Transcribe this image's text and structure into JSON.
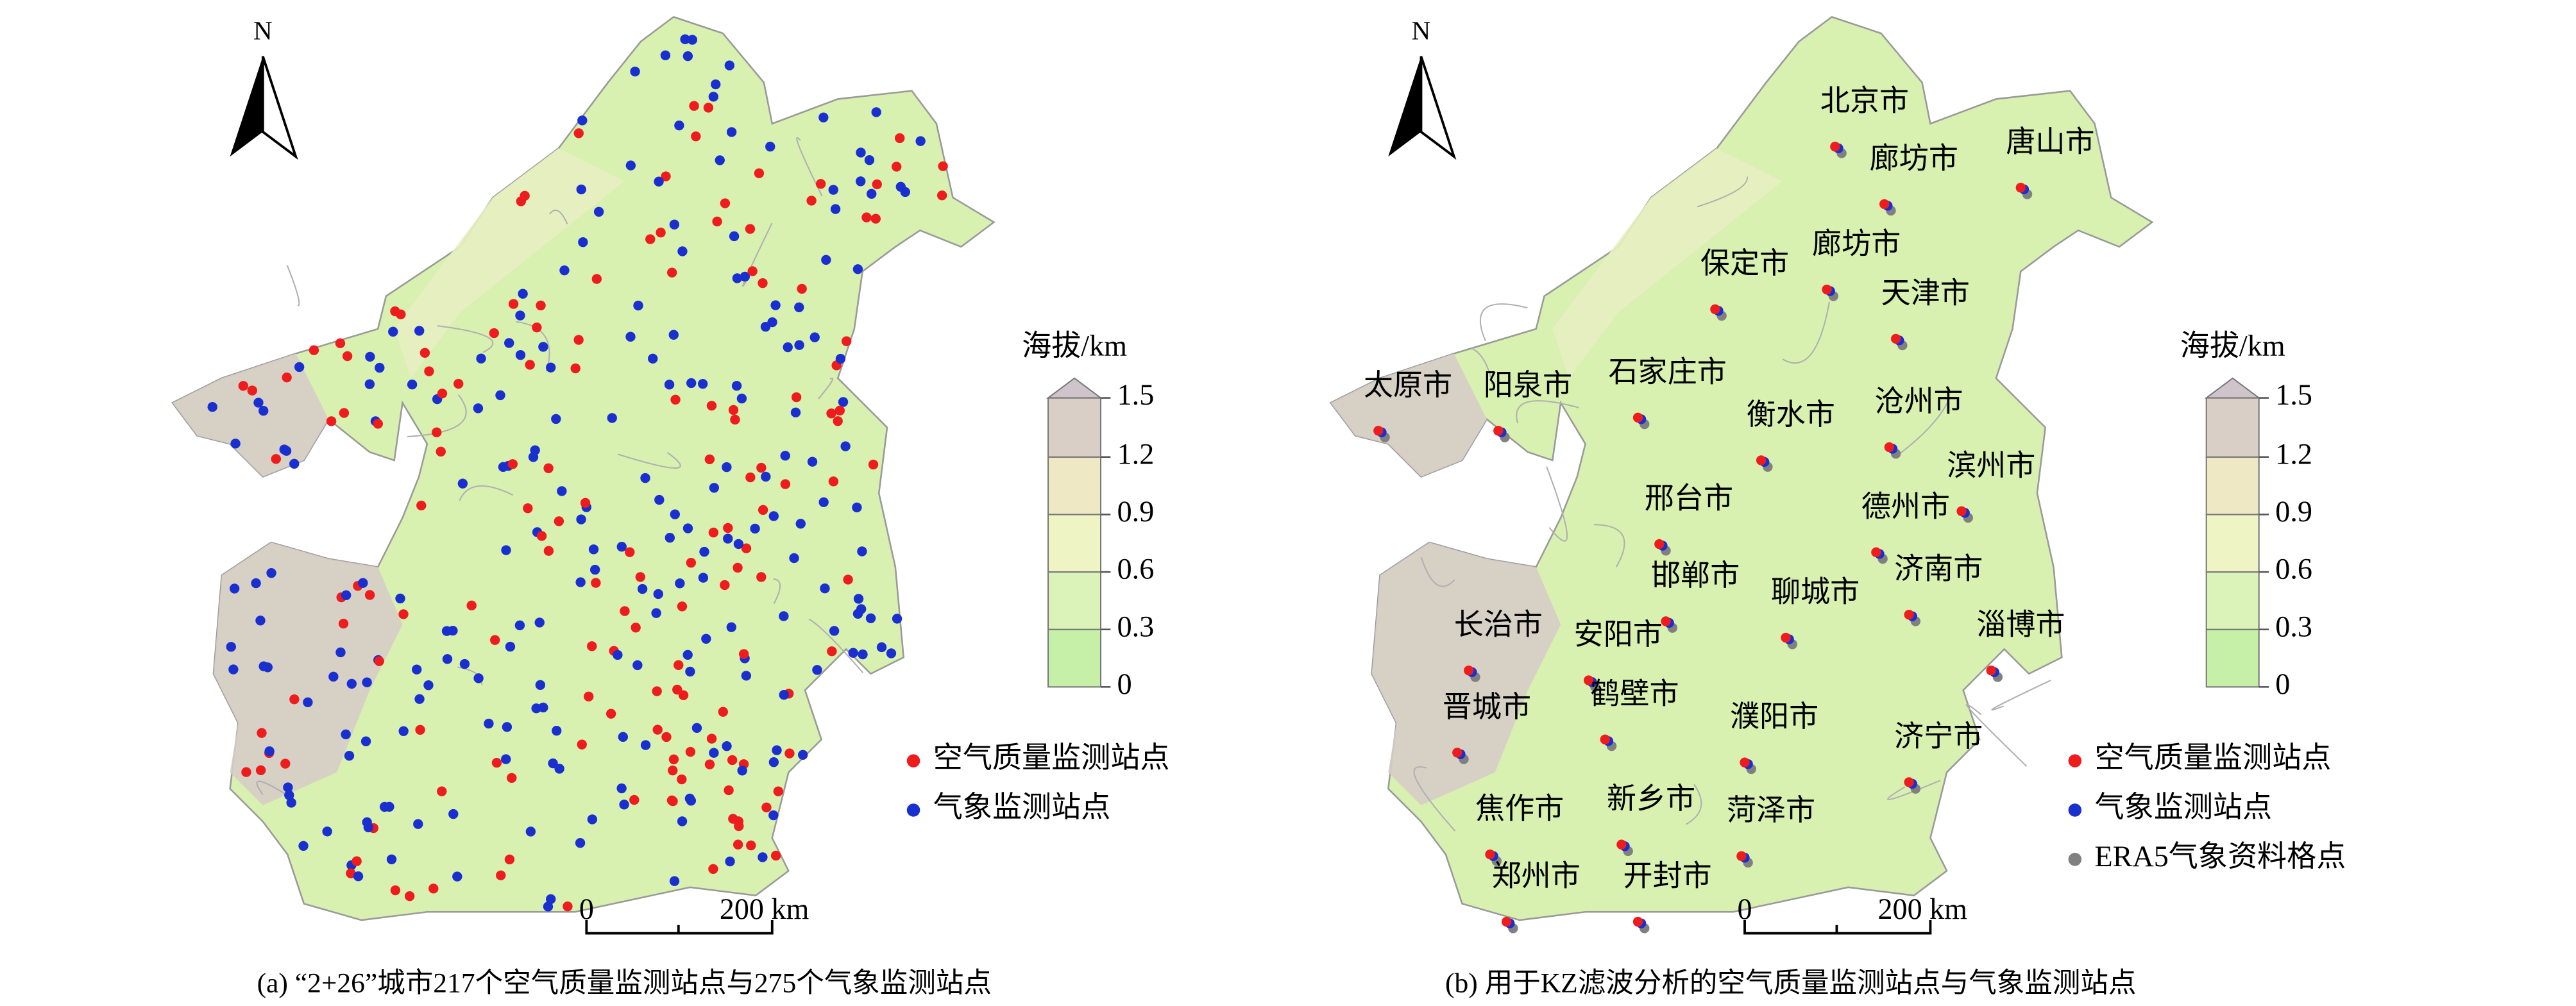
{
  "panels": [
    {
      "north": "N",
      "legend_title": "海拔/km",
      "legend_ticks": [
        0,
        0.3,
        0.6,
        0.9,
        1.2,
        1.5
      ],
      "markers": [
        "空气质量监测站点",
        "气象监测站点"
      ],
      "scale": {
        "start": "0",
        "end": "200 km"
      },
      "caption": "(a) “2+26”城市217个空气质量监测站点与275个气象监测站点"
    },
    {
      "north": "N",
      "legend_title": "海拔/km",
      "legend_ticks": [
        0,
        0.3,
        0.6,
        0.9,
        1.2,
        1.5
      ],
      "markers": [
        "空气质量监测站点",
        "气象监测站点",
        "ERA5气象资料格点"
      ],
      "scale": {
        "start": "0",
        "end": "200 km"
      },
      "cities": [
        "北京市",
        "廊坊市",
        "唐山市",
        "廊坊市",
        "保定市",
        "天津市",
        "太原市",
        "阳泉市",
        "石家庄市",
        "衡水市",
        "沧州市",
        "滨州市",
        "邢台市",
        "德州市",
        "邯郸市",
        "济南市",
        "聊城市",
        "淄博市",
        "长治市",
        "安阳市",
        "鹤壁市",
        "晋城市",
        "濮阳市",
        "济宁市",
        "焦作市",
        "新乡市",
        "菏泽市",
        "郑州市",
        "开封市"
      ],
      "caption": "(b) 用于KZ滤波分析的空气质量监测站点与气象监测站点"
    }
  ]
}
